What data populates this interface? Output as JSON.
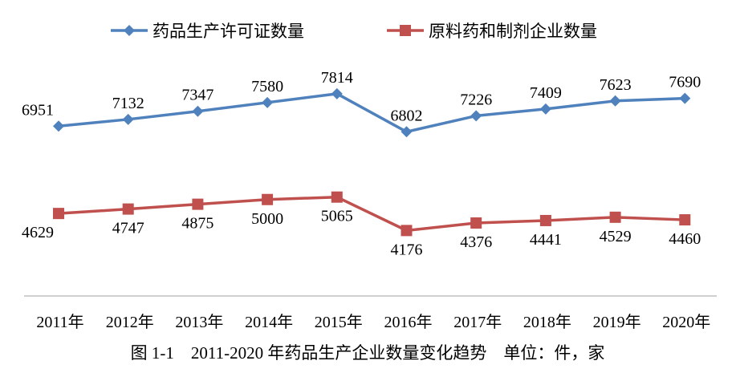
{
  "chart_data": {
    "type": "line",
    "title": "图 1-1　2011-2020 年药品生产企业数量变化趋势　单位：件，家",
    "categories": [
      "2011年",
      "2012年",
      "2013年",
      "2014年",
      "2015年",
      "2016年",
      "2017年",
      "2018年",
      "2019年",
      "2020年"
    ],
    "series": [
      {
        "name": "药品生产许可证数量",
        "color": "#4f81bd",
        "marker": "diamond",
        "values": [
          6951,
          7132,
          7347,
          7580,
          7814,
          6802,
          7226,
          7409,
          7623,
          7690
        ],
        "label_position": "above"
      },
      {
        "name": "原料药和制剂企业数量",
        "color": "#c0504d",
        "marker": "square",
        "values": [
          4629,
          4747,
          4875,
          5000,
          5065,
          4176,
          4376,
          4441,
          4529,
          4460
        ],
        "label_position": "below"
      }
    ],
    "legend_position": "top",
    "grid": false
  }
}
